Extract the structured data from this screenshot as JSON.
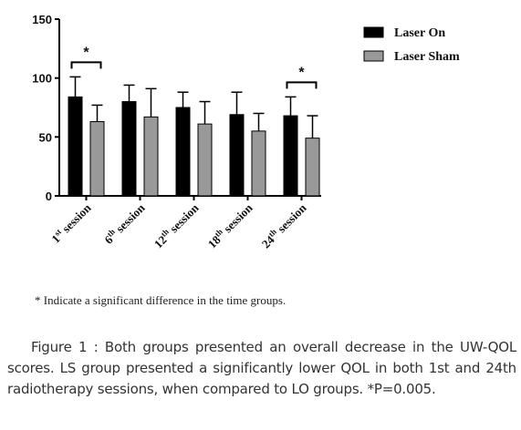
{
  "chart_data": {
    "type": "bar",
    "categories": [
      "1st session",
      "6th session",
      "12th session",
      "18th session",
      "24th session"
    ],
    "category_labels": [
      {
        "num": "1",
        "sup": "st",
        "rest": " session"
      },
      {
        "num": "6",
        "sup": "th",
        "rest": " session"
      },
      {
        "num": "12",
        "sup": "th",
        "rest": " session"
      },
      {
        "num": "18",
        "sup": "th",
        "rest": " session"
      },
      {
        "num": "24",
        "sup": "th",
        "rest": " session"
      }
    ],
    "series": [
      {
        "name": "Laser On",
        "values": [
          84,
          80,
          75,
          69,
          68
        ],
        "errors": [
          17,
          14,
          13,
          19,
          16
        ],
        "color": "#000000"
      },
      {
        "name": "Laser Sham",
        "values": [
          63,
          67,
          61,
          55,
          49
        ],
        "errors": [
          14,
          24,
          19,
          15,
          19
        ],
        "color": "#999999"
      }
    ],
    "yticks": [
      "0",
      "50",
      "100",
      "150"
    ],
    "ylim": [
      0,
      150
    ],
    "xlabel": "",
    "ylabel": "",
    "legend_position": "top-right",
    "significance": [
      {
        "category_index": 0,
        "mark": "*"
      },
      {
        "category_index": 4,
        "mark": "*"
      }
    ]
  },
  "footnote": "* Indicate a significant difference in the time groups.",
  "caption": "Figure 1 : Both groups presented an overall decrease in the UW-QOL scores. LS group presented a significantly lower QOL in both 1st and 24th radiotherapy sessions, when compared to LO groups. *P=0.005."
}
